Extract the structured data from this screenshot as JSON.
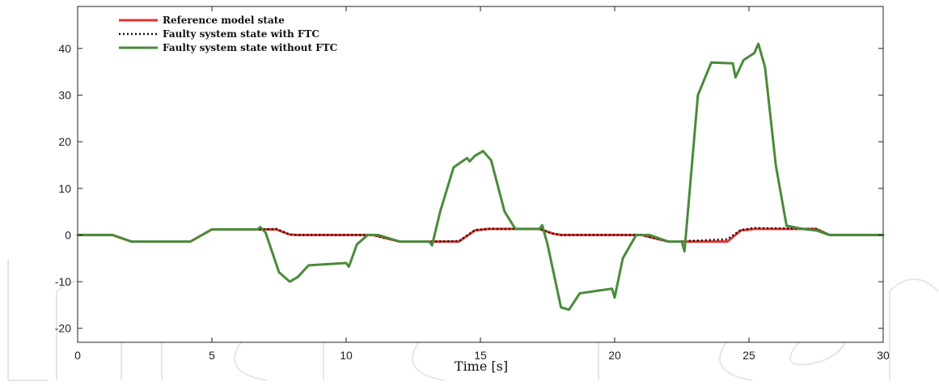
{
  "chart_data": {
    "type": "line",
    "xlabel": "Time [s]",
    "ylabel": "",
    "xlim": [
      0,
      30
    ],
    "ylim": [
      -23,
      49
    ],
    "xticks": [
      0,
      5,
      10,
      15,
      20,
      25,
      30
    ],
    "yticks": [
      -20,
      -10,
      0,
      10,
      20,
      30,
      40
    ],
    "legend_position": "top-left",
    "grid": false,
    "series": [
      {
        "name": "Reference model state",
        "color": "#e8332e",
        "style": "solid",
        "x": [
          0,
          1.3,
          2.0,
          4.2,
          5.0,
          6.8,
          7.4,
          7.9,
          8.2,
          11.0,
          12.0,
          13.2,
          14.2,
          14.8,
          15.3,
          17.2,
          17.7,
          18.0,
          21.0,
          22.0,
          22.6,
          23.8,
          24.2,
          24.7,
          25.2,
          27.5,
          28.0,
          30.0
        ],
        "values": [
          0,
          0,
          -1.4,
          -1.4,
          1.2,
          1.2,
          1.2,
          0.1,
          0,
          0,
          -1.4,
          -1.4,
          -1.4,
          1.0,
          1.3,
          1.3,
          0.3,
          0,
          0,
          -1.4,
          -1.4,
          -1.4,
          -1.4,
          1.0,
          1.3,
          1.3,
          0,
          0
        ]
      },
      {
        "name": "Faulty system state with FTC",
        "color": "#111111",
        "style": "dotted",
        "x": [
          0,
          1.3,
          2.0,
          4.2,
          5.0,
          6.8,
          7.4,
          7.9,
          8.2,
          11.0,
          12.0,
          13.2,
          14.2,
          14.8,
          15.3,
          17.2,
          17.7,
          18.0,
          21.0,
          22.0,
          22.6,
          23.8,
          24.2,
          24.7,
          25.2,
          27.5,
          28.0,
          30.0
        ],
        "values": [
          0,
          0,
          -1.4,
          -1.4,
          1.2,
          1.2,
          1.3,
          0.1,
          0,
          0,
          -1.4,
          -1.4,
          -1.3,
          1.1,
          1.3,
          1.3,
          0.3,
          0,
          0,
          -1.4,
          -1.3,
          -1.0,
          -0.9,
          1.1,
          1.5,
          1.3,
          0,
          0
        ]
      },
      {
        "name": "Faulty system state without FTC",
        "color": "#4a8a3a",
        "style": "solid",
        "x": [
          0,
          1.3,
          2.0,
          4.2,
          5.0,
          6.7,
          6.8,
          7.0,
          7.5,
          7.9,
          8.2,
          8.6,
          10.0,
          10.1,
          10.4,
          10.8,
          11.2,
          12.0,
          13.1,
          13.2,
          13.5,
          14.0,
          14.5,
          14.6,
          14.8,
          15.1,
          15.4,
          15.9,
          16.3,
          17.2,
          17.3,
          17.5,
          18.0,
          18.3,
          18.7,
          19.9,
          20.0,
          20.3,
          20.8,
          21.3,
          22.0,
          22.5,
          22.6,
          22.8,
          23.1,
          23.6,
          24.4,
          24.5,
          24.8,
          25.2,
          25.35,
          25.6,
          26.0,
          26.4,
          27.0,
          27.5,
          28.0,
          30.0
        ],
        "values": [
          0,
          0,
          -1.4,
          -1.4,
          1.2,
          1.2,
          1.7,
          0.5,
          -8.0,
          -10.0,
          -9.0,
          -6.5,
          -6.0,
          -6.8,
          -2.0,
          0,
          0,
          -1.4,
          -1.4,
          -2.2,
          5.0,
          14.5,
          16.5,
          15.8,
          17.0,
          18.0,
          16.0,
          5.0,
          1.3,
          1.3,
          2.1,
          -2.0,
          -15.5,
          -16.0,
          -12.5,
          -11.5,
          -13.4,
          -5.0,
          0,
          0,
          -1.4,
          -1.4,
          -3.5,
          10.0,
          30.0,
          37.0,
          36.8,
          33.8,
          37.5,
          39.0,
          41.0,
          36.0,
          15.0,
          2.0,
          1.3,
          1.0,
          0,
          0
        ]
      }
    ]
  }
}
